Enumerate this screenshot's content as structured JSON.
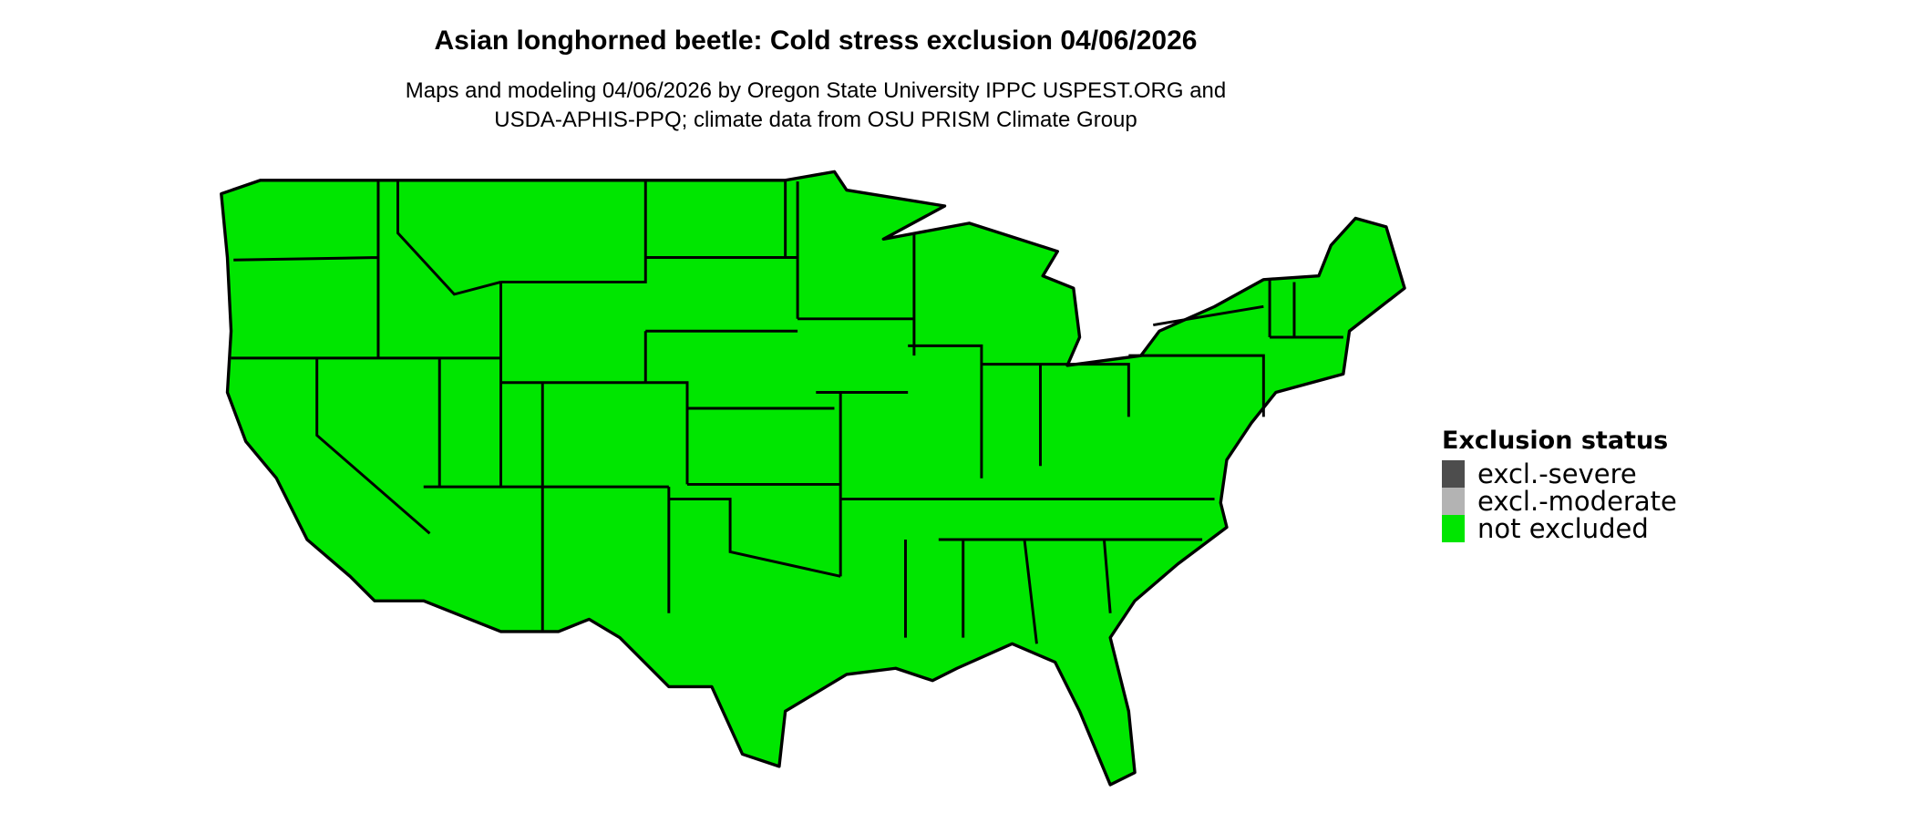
{
  "title": "Asian longhorned beetle: Cold stress exclusion 04/06/2026",
  "subtitle_line1": "Maps and modeling 04/06/2026 by Oregon State University IPPC USPEST.ORG and",
  "subtitle_line2": "USDA-APHIS-PPQ; climate data from OSU PRISM Climate Group",
  "map": {
    "region": "contiguous United States",
    "fill_status": "not excluded",
    "border_color": "#000000"
  },
  "legend": {
    "title": "Exclusion status",
    "items": [
      {
        "label": "excl.-severe",
        "color": "#4d4d4d"
      },
      {
        "label": "excl.-moderate",
        "color": "#b3b3b3"
      },
      {
        "label": "not excluded",
        "color": "#00e600"
      }
    ]
  }
}
